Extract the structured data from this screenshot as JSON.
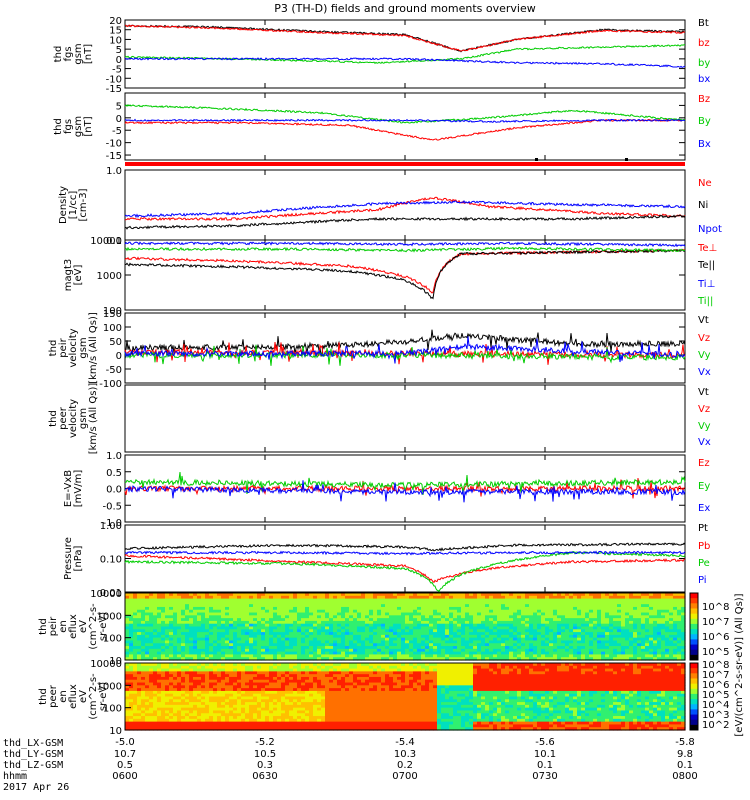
{
  "title": "P3 (TH-D) fields and ground moments overview",
  "colors": {
    "black": "#000000",
    "red": "#ff0000",
    "green": "#00cc00",
    "blue": "#0000ff"
  },
  "chart_data": [
    {
      "type": "line",
      "id": "p1",
      "ylabel": [
        "thd",
        "fgs",
        "gsm",
        "[nT]"
      ],
      "ylim": [
        -15,
        20
      ],
      "yticks": [
        "20",
        "15",
        "10",
        "5",
        "0",
        "-5",
        "-10",
        "-15"
      ],
      "series": [
        {
          "name": "Bt",
          "color": "black",
          "pts": [
            [
              0,
              17
            ],
            [
              0.15,
              16.5
            ],
            [
              0.35,
              14
            ],
            [
              0.5,
              12.5
            ],
            [
              0.6,
              4
            ],
            [
              0.7,
              10
            ],
            [
              0.85,
              15
            ],
            [
              1,
              14
            ]
          ]
        },
        {
          "name": "bz",
          "color": "red",
          "pts": [
            [
              0,
              17
            ],
            [
              0.15,
              16
            ],
            [
              0.35,
              13.5
            ],
            [
              0.5,
              12
            ],
            [
              0.6,
              4
            ],
            [
              0.7,
              10
            ],
            [
              0.85,
              14.5
            ],
            [
              1,
              13.5
            ]
          ]
        },
        {
          "name": "by",
          "color": "green",
          "pts": [
            [
              0,
              1
            ],
            [
              0.2,
              0
            ],
            [
              0.45,
              -2
            ],
            [
              0.6,
              0
            ],
            [
              0.7,
              5
            ],
            [
              1,
              7
            ]
          ]
        },
        {
          "name": "bx",
          "color": "blue",
          "pts": [
            [
              0,
              0
            ],
            [
              0.3,
              0
            ],
            [
              0.5,
              0
            ],
            [
              0.7,
              -2
            ],
            [
              0.85,
              -2.5
            ],
            [
              1,
              -4
            ]
          ]
        }
      ]
    },
    {
      "type": "line",
      "id": "p2",
      "ylabel": [
        "thd",
        "fgs",
        "gsm",
        "[nT]"
      ],
      "ylim": [
        -17,
        10
      ],
      "yticks": [
        "5",
        "0",
        "-5",
        "-10",
        "-15"
      ],
      "series": [
        {
          "name": "Bz",
          "color": "red",
          "pts": [
            [
              0,
              -2
            ],
            [
              0.2,
              -2
            ],
            [
              0.4,
              -3
            ],
            [
              0.55,
              -9
            ],
            [
              0.7,
              -4
            ],
            [
              0.85,
              -1
            ],
            [
              1,
              -1
            ]
          ]
        },
        {
          "name": "By",
          "color": "green",
          "pts": [
            [
              0,
              5
            ],
            [
              0.15,
              4
            ],
            [
              0.35,
              2
            ],
            [
              0.5,
              -2
            ],
            [
              0.65,
              0
            ],
            [
              0.8,
              3
            ],
            [
              1,
              -1
            ]
          ]
        },
        {
          "name": "Bx",
          "color": "blue",
          "pts": [
            [
              0,
              -1
            ],
            [
              0.3,
              -1
            ],
            [
              0.5,
              -1
            ],
            [
              0.65,
              -1.5
            ],
            [
              0.85,
              -1
            ],
            [
              1,
              -1
            ]
          ]
        }
      ]
    },
    {
      "type": "line",
      "id": "p3",
      "ylabel": [
        "Density",
        "[1/cc]",
        "[cm-3]"
      ],
      "ylim": [
        0.1,
        1.0
      ],
      "log": true,
      "yticks": [
        "1.0",
        "0.1"
      ],
      "series": [
        {
          "name": "Ne",
          "color": "red",
          "pts": [
            [
              0,
              0.2
            ],
            [
              0.2,
              0.2
            ],
            [
              0.45,
              0.27
            ],
            [
              0.55,
              0.4
            ],
            [
              0.65,
              0.3
            ],
            [
              0.85,
              0.24
            ],
            [
              1,
              0.22
            ]
          ]
        },
        {
          "name": "Ni",
          "color": "black",
          "pts": [
            [
              0,
              0.15
            ],
            [
              0.2,
              0.16
            ],
            [
              0.45,
              0.2
            ],
            [
              0.6,
              0.2
            ],
            [
              0.8,
              0.2
            ],
            [
              1,
              0.22
            ]
          ]
        },
        {
          "name": "Npot",
          "color": "blue",
          "pts": [
            [
              0,
              0.22
            ],
            [
              0.2,
              0.24
            ],
            [
              0.45,
              0.33
            ],
            [
              0.6,
              0.35
            ],
            [
              0.8,
              0.32
            ],
            [
              1,
              0.3
            ]
          ]
        }
      ]
    },
    {
      "type": "line",
      "id": "p4",
      "ylabel": [
        "magt3",
        "[eV]"
      ],
      "ylim": [
        100,
        10000
      ],
      "log": true,
      "yticks": [
        "10000",
        "1000",
        "100"
      ],
      "series": [
        {
          "name": "Te⊥",
          "color": "red",
          "pts": [
            [
              0,
              3000
            ],
            [
              0.2,
              2500
            ],
            [
              0.4,
              1800
            ],
            [
              0.5,
              900
            ],
            [
              0.55,
              300
            ],
            [
              0.6,
              4000
            ],
            [
              1,
              5000
            ]
          ]
        },
        {
          "name": "Te||",
          "color": "black",
          "pts": [
            [
              0,
              2000
            ],
            [
              0.2,
              1700
            ],
            [
              0.4,
              1300
            ],
            [
              0.5,
              700
            ],
            [
              0.55,
              200
            ],
            [
              0.6,
              4000
            ],
            [
              1,
              5000
            ]
          ]
        },
        {
          "name": "Ti⊥",
          "color": "blue",
          "pts": [
            [
              0,
              8000
            ],
            [
              0.3,
              8000
            ],
            [
              0.5,
              7500
            ],
            [
              0.7,
              8000
            ],
            [
              1,
              7000
            ]
          ]
        },
        {
          "name": "Ti||",
          "color": "green",
          "pts": [
            [
              0,
              5500
            ],
            [
              0.3,
              5500
            ],
            [
              0.5,
              5000
            ],
            [
              0.7,
              5800
            ],
            [
              1,
              5000
            ]
          ]
        }
      ]
    },
    {
      "type": "line",
      "id": "p5",
      "ylabel": [
        "thd",
        "peir",
        "velocity",
        "gsm",
        "[km/s (All Qs)]"
      ],
      "ylim": [
        -100,
        150
      ],
      "yticks": [
        "150",
        "100",
        "50",
        "0",
        "-50",
        "-100"
      ],
      "series": [
        {
          "name": "Vt",
          "color": "black",
          "pts": [
            [
              0,
              25
            ],
            [
              0.3,
              30
            ],
            [
              0.45,
              40
            ],
            [
              0.6,
              70
            ],
            [
              0.8,
              40
            ],
            [
              1,
              40
            ]
          ]
        },
        {
          "name": "Vz",
          "color": "red",
          "pts": [
            [
              0,
              10
            ],
            [
              0.5,
              5
            ],
            [
              1,
              0
            ]
          ]
        },
        {
          "name": "Vy",
          "color": "green",
          "pts": [
            [
              0,
              0
            ],
            [
              0.5,
              0
            ],
            [
              1,
              -10
            ]
          ]
        },
        {
          "name": "Vx",
          "color": "blue",
          "pts": [
            [
              0,
              5
            ],
            [
              0.5,
              5
            ],
            [
              0.6,
              30
            ],
            [
              1,
              0
            ]
          ]
        }
      ]
    },
    {
      "type": "line",
      "id": "p6",
      "ylabel": [
        "thd",
        "peer",
        "velocity",
        "gsm",
        "[km/s (All Qs)]"
      ],
      "ylim": [
        0,
        1
      ],
      "yticks": [],
      "series": [
        {
          "name": "Vt",
          "color": "black",
          "pts": []
        },
        {
          "name": "Vz",
          "color": "red",
          "pts": []
        },
        {
          "name": "Vy",
          "color": "green",
          "pts": []
        },
        {
          "name": "Vx",
          "color": "blue",
          "pts": []
        }
      ]
    },
    {
      "type": "line",
      "id": "p7",
      "ylabel": [
        "E=-VxB",
        "[mV/m]"
      ],
      "ylim": [
        -1.0,
        1.0
      ],
      "yticks": [
        "1.0",
        "0.5",
        "0.0",
        "-0.5",
        "-1.0"
      ],
      "series": [
        {
          "name": "Ez",
          "color": "red",
          "pts": [
            [
              0,
              0
            ],
            [
              1,
              0
            ]
          ]
        },
        {
          "name": "Ey",
          "color": "green",
          "pts": [
            [
              0,
              0.2
            ],
            [
              0.5,
              0.1
            ],
            [
              1,
              0.2
            ]
          ]
        },
        {
          "name": "Ex",
          "color": "blue",
          "pts": [
            [
              0,
              0
            ],
            [
              0.5,
              -0.1
            ],
            [
              1,
              -0.1
            ]
          ]
        }
      ]
    },
    {
      "type": "line",
      "id": "p8",
      "ylabel": [
        "Pressure",
        "[nPa]"
      ],
      "ylim": [
        0.01,
        1.0
      ],
      "log": true,
      "yticks": [
        "1.00",
        "0.10",
        "0.01"
      ],
      "series": [
        {
          "name": "Pt",
          "color": "black",
          "pts": [
            [
              0,
              0.2
            ],
            [
              0.3,
              0.25
            ],
            [
              0.5,
              0.22
            ],
            [
              0.55,
              0.18
            ],
            [
              0.7,
              0.25
            ],
            [
              1,
              0.27
            ]
          ]
        },
        {
          "name": "Pb",
          "color": "red",
          "pts": [
            [
              0,
              0.12
            ],
            [
              0.3,
              0.08
            ],
            [
              0.5,
              0.06
            ],
            [
              0.55,
              0.02
            ],
            [
              0.65,
              0.05
            ],
            [
              0.8,
              0.08
            ],
            [
              1,
              0.09
            ]
          ]
        },
        {
          "name": "Pe",
          "color": "green",
          "pts": [
            [
              0,
              0.08
            ],
            [
              0.3,
              0.07
            ],
            [
              0.5,
              0.05
            ],
            [
              0.56,
              0.01
            ],
            [
              0.65,
              0.06
            ],
            [
              0.8,
              0.15
            ],
            [
              1,
              0.12
            ]
          ]
        },
        {
          "name": "Pi",
          "color": "blue",
          "pts": [
            [
              0,
              0.15
            ],
            [
              0.3,
              0.15
            ],
            [
              0.5,
              0.14
            ],
            [
              0.7,
              0.15
            ],
            [
              1,
              0.15
            ]
          ]
        }
      ]
    },
    {
      "type": "heatmap",
      "id": "p9",
      "ylabel": [
        "thd",
        "peir",
        "en",
        "eflux",
        "eV",
        "(cm^2-s-",
        "sr-eV)"
      ],
      "ylim": [
        10,
        10000
      ],
      "log": true,
      "yticks": [
        "10000",
        "1000",
        "100",
        "10"
      ]
    },
    {
      "type": "heatmap",
      "id": "p10",
      "ylabel": [
        "thd",
        "peer",
        "en",
        "eflux",
        "eV",
        "(cm^2-s-",
        "sr-eV)"
      ],
      "ylim": [
        10,
        10000
      ],
      "log": true,
      "yticks": [
        "10000",
        "1000",
        "100",
        "10"
      ]
    }
  ],
  "colorbar": {
    "label": "[eV/(cm^2-s-sr-eV)] (All Qs)]",
    "ticks_top": [
      "10^8",
      "10^7",
      "10^6",
      "10^5"
    ],
    "ticks_bottom": [
      "10^8",
      "10^7",
      "10^6",
      "10^5",
      "10^4",
      "10^3",
      "10^2"
    ]
  },
  "xaxis": {
    "tick_labels": [
      "-5.0",
      "-5.2",
      "-5.4",
      "-5.6",
      "-5.8"
    ],
    "rows": [
      {
        "label": "thd_LX-GSM",
        "values": [
          "-5.0",
          "-5.2",
          "-5.4",
          "-5.6",
          "-5.8"
        ]
      },
      {
        "label": "thd_LY-GSM",
        "values": [
          "10.7",
          "10.5",
          "10.3",
          "10.1",
          "9.8"
        ]
      },
      {
        "label": "thd_LZ-GSM",
        "values": [
          "0.5",
          "0.3",
          "0.2",
          "0.1",
          "0.1"
        ]
      },
      {
        "label": "hhmm",
        "values": [
          "0600",
          "0630",
          "0700",
          "0730",
          "0800"
        ]
      }
    ],
    "date": "2017 Apr 26"
  }
}
